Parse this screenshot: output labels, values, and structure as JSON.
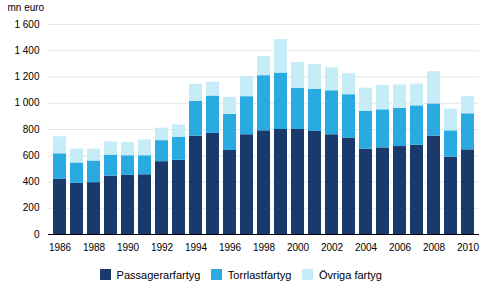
{
  "chart_data": {
    "type": "bar",
    "stacked": true,
    "ylabel": "mn euro",
    "categories": [
      "1986",
      null,
      "1988",
      null,
      "1990",
      null,
      "1992",
      null,
      "1994",
      null,
      "1996",
      null,
      "1998",
      null,
      "2000",
      null,
      "2002",
      null,
      "2004",
      null,
      "2006",
      null,
      "2008",
      null,
      "2010"
    ],
    "series": [
      {
        "name": "Passagerarfartyg",
        "color": "#1a3a6b",
        "values": [
          420,
          390,
          395,
          445,
          450,
          455,
          555,
          565,
          750,
          770,
          640,
          760,
          790,
          800,
          800,
          785,
          760,
          735,
          650,
          660,
          670,
          680,
          750,
          590,
          645
        ]
      },
      {
        "name": "Torrlastfartyg",
        "color": "#29abe2",
        "values": [
          195,
          155,
          165,
          160,
          150,
          145,
          160,
          175,
          265,
          285,
          275,
          290,
          420,
          430,
          315,
          320,
          335,
          330,
          290,
          290,
          290,
          300,
          245,
          200,
          275
        ]
      },
      {
        "name": "Övriga fartyg",
        "color": "#c5ecf7",
        "values": [
          130,
          105,
          90,
          100,
          100,
          120,
          95,
          95,
          130,
          105,
          130,
          155,
          145,
          255,
          195,
          190,
          175,
          160,
          175,
          185,
          180,
          165,
          245,
          165,
          130
        ]
      }
    ],
    "ylim": [
      0,
      1600
    ],
    "yticks": [
      0,
      200,
      400,
      600,
      800,
      {
        "value": 1000,
        "label": "1 000"
      },
      {
        "value": 1200,
        "label": "1 200"
      },
      {
        "value": 1400,
        "label": "1 400"
      },
      {
        "value": 1600,
        "label": "1 600"
      }
    ],
    "grid": true,
    "legend": "bottom"
  }
}
